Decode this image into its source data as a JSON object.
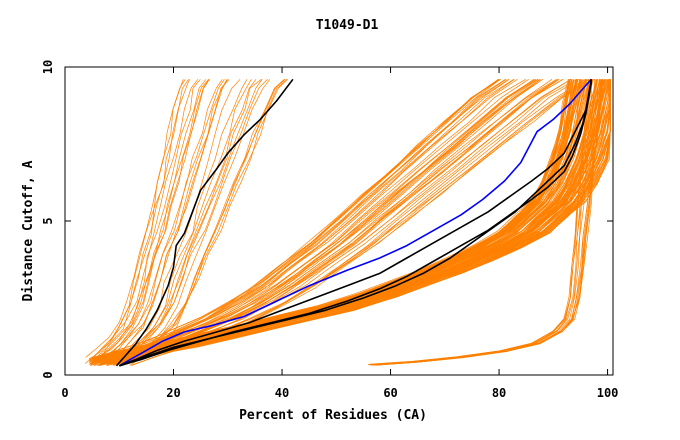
{
  "chart_data": {
    "type": "line",
    "title": "T1049-D1",
    "xlabel": "Percent of Residues (CA)",
    "ylabel": "Distance Cutoff, A",
    "xlim": [
      0,
      101
    ],
    "ylim": [
      0,
      10
    ],
    "xticks": [
      0,
      20,
      40,
      60,
      80,
      100
    ],
    "yticks": [
      0,
      5,
      10
    ],
    "grid": false,
    "legend": "none",
    "colors": {
      "background_series": "#ff8000",
      "highlight_black": "#000000",
      "highlight_blue": "#0000ff",
      "axis": "#000000"
    },
    "series": [
      {
        "color": "#000000",
        "points": [
          [
            9.5,
            0.3
          ],
          [
            11,
            0.6
          ],
          [
            13,
            1.0
          ],
          [
            15,
            1.5
          ],
          [
            17,
            2.1
          ],
          [
            19,
            2.9
          ],
          [
            20,
            3.5
          ],
          [
            20.5,
            4.2
          ],
          [
            22,
            4.6
          ],
          [
            23.5,
            5.3
          ],
          [
            25,
            6.0
          ],
          [
            28,
            6.7
          ],
          [
            30,
            7.2
          ],
          [
            33,
            7.8
          ],
          [
            36,
            8.3
          ],
          [
            39,
            8.9
          ],
          [
            42,
            9.6
          ]
        ]
      },
      {
        "color": "#0000ff",
        "points": [
          [
            10,
            0.3
          ],
          [
            12,
            0.5
          ],
          [
            15,
            0.8
          ],
          [
            18,
            1.1
          ],
          [
            22,
            1.4
          ],
          [
            27,
            1.6
          ],
          [
            33,
            1.9
          ],
          [
            39,
            2.4
          ],
          [
            45,
            2.9
          ],
          [
            52,
            3.4
          ],
          [
            58,
            3.8
          ],
          [
            63,
            4.2
          ],
          [
            68,
            4.7
          ],
          [
            73,
            5.2
          ],
          [
            77,
            5.7
          ],
          [
            81,
            6.3
          ],
          [
            84,
            6.9
          ],
          [
            85.5,
            7.4
          ],
          [
            87,
            7.9
          ],
          [
            90,
            8.3
          ],
          [
            93,
            8.8
          ],
          [
            95,
            9.2
          ],
          [
            97,
            9.6
          ]
        ]
      },
      {
        "color": "#000000",
        "points": [
          [
            10,
            0.3
          ],
          [
            13,
            0.5
          ],
          [
            17,
            0.8
          ],
          [
            22,
            1.1
          ],
          [
            28,
            1.4
          ],
          [
            34,
            1.7
          ],
          [
            40,
            2.1
          ],
          [
            46,
            2.5
          ],
          [
            52,
            2.9
          ],
          [
            58,
            3.3
          ],
          [
            63,
            3.8
          ],
          [
            68,
            4.3
          ],
          [
            73,
            4.8
          ],
          [
            78,
            5.3
          ],
          [
            82,
            5.8
          ],
          [
            86,
            6.3
          ],
          [
            89,
            6.7
          ],
          [
            92,
            7.2
          ],
          [
            94,
            7.9
          ],
          [
            96,
            8.6
          ],
          [
            97,
            9.6
          ]
        ]
      },
      {
        "color": "#000000",
        "points": [
          [
            10,
            0.3
          ],
          [
            14,
            0.5
          ],
          [
            19,
            0.8
          ],
          [
            25,
            1.1
          ],
          [
            31,
            1.4
          ],
          [
            38,
            1.7
          ],
          [
            45,
            2.0
          ],
          [
            52,
            2.4
          ],
          [
            58,
            2.8
          ],
          [
            63,
            3.2
          ],
          [
            68,
            3.7
          ],
          [
            73,
            4.2
          ],
          [
            78,
            4.7
          ],
          [
            82,
            5.2
          ],
          [
            86,
            5.7
          ],
          [
            89,
            6.1
          ],
          [
            92,
            6.6
          ],
          [
            93.5,
            7.1
          ],
          [
            95,
            7.8
          ],
          [
            96,
            8.5
          ],
          [
            97,
            9.5
          ]
        ]
      },
      {
        "color": "#000000",
        "points": [
          [
            10,
            0.3
          ],
          [
            15,
            0.6
          ],
          [
            20,
            0.9
          ],
          [
            27,
            1.2
          ],
          [
            34,
            1.5
          ],
          [
            41,
            1.8
          ],
          [
            48,
            2.1
          ],
          [
            55,
            2.5
          ],
          [
            61,
            2.9
          ],
          [
            66,
            3.3
          ],
          [
            71,
            3.8
          ],
          [
            75,
            4.3
          ],
          [
            79,
            4.8
          ],
          [
            83,
            5.3
          ],
          [
            86,
            5.8
          ],
          [
            89,
            6.3
          ],
          [
            92,
            6.8
          ],
          [
            94,
            7.5
          ],
          [
            95.5,
            8.2
          ],
          [
            96.5,
            9.0
          ],
          [
            97,
            9.6
          ]
        ]
      }
    ],
    "background_series": {
      "color": "#ff8000",
      "families": [
        {
          "count": 28,
          "points": [
            [
              4,
              0.3
            ],
            [
              6,
              0.6
            ],
            [
              8,
              1.0
            ],
            [
              10,
              1.5
            ],
            [
              11.5,
              2.2
            ],
            [
              12.5,
              3.0
            ],
            [
              13.5,
              3.8
            ],
            [
              15,
              4.6
            ],
            [
              16,
              5.4
            ],
            [
              17,
              6.2
            ],
            [
              18,
              7.0
            ],
            [
              19,
              7.8
            ],
            [
              20,
              8.6
            ],
            [
              21,
              9.3
            ],
            [
              22,
              9.6
            ]
          ],
          "dx": [
            0,
            20
          ],
          "dy": [
            0,
            0.3
          ],
          "jitter": 0.4
        },
        {
          "count": 40,
          "points": [
            [
              6,
              0.3
            ],
            [
              10,
              0.6
            ],
            [
              15,
              0.9
            ],
            [
              20,
              1.3
            ],
            [
              25,
              1.7
            ],
            [
              30,
              2.2
            ],
            [
              35,
              2.8
            ],
            [
              40,
              3.5
            ],
            [
              45,
              4.2
            ],
            [
              50,
              5.0
            ],
            [
              55,
              5.8
            ],
            [
              60,
              6.6
            ],
            [
              65,
              7.4
            ],
            [
              70,
              8.2
            ],
            [
              75,
              9.0
            ],
            [
              80,
              9.6
            ]
          ],
          "dx": [
            0,
            18
          ],
          "dy": [
            0,
            0.3
          ],
          "jitter": 0.35
        },
        {
          "count": 120,
          "points": [
            [
              6,
              0.3
            ],
            [
              10,
              0.5
            ],
            [
              15,
              0.7
            ],
            [
              21,
              0.9
            ],
            [
              28,
              1.2
            ],
            [
              35,
              1.5
            ],
            [
              42,
              1.8
            ],
            [
              49,
              2.1
            ],
            [
              56,
              2.5
            ],
            [
              62,
              2.9
            ],
            [
              68,
              3.3
            ],
            [
              73,
              3.7
            ],
            [
              78,
              4.1
            ],
            [
              83,
              4.6
            ],
            [
              86,
              5.1
            ],
            [
              89,
              5.6
            ],
            [
              91,
              6.2
            ],
            [
              93,
              7.0
            ],
            [
              94.5,
              7.9
            ],
            [
              95.5,
              8.8
            ],
            [
              96.5,
              9.6
            ]
          ],
          "dx": [
            -4,
            8
          ],
          "dy": [
            0,
            0.25
          ],
          "jitter": 0.25
        },
        {
          "count": 14,
          "points": [
            [
              56,
              0.3
            ],
            [
              64,
              0.4
            ],
            [
              72,
              0.55
            ],
            [
              80,
              0.75
            ],
            [
              86,
              1.0
            ],
            [
              90,
              1.4
            ],
            [
              92,
              1.8
            ],
            [
              93,
              2.5
            ],
            [
              93.5,
              3.5
            ],
            [
              94,
              4.5
            ],
            [
              94.5,
              5.5
            ],
            [
              95,
              6.5
            ],
            [
              95.5,
              7.5
            ],
            [
              96,
              8.5
            ],
            [
              96.5,
              9.6
            ]
          ],
          "dx": [
            0,
            3
          ],
          "dy": [
            0,
            0.05
          ],
          "jitter": 0.2
        }
      ]
    }
  }
}
